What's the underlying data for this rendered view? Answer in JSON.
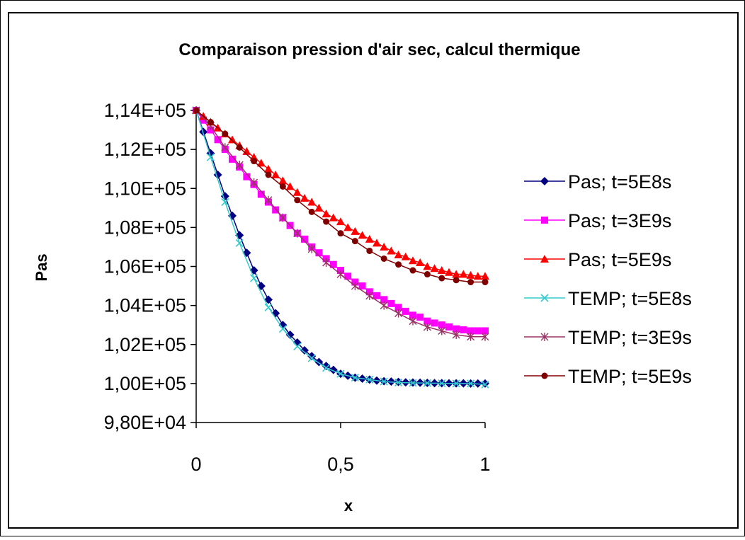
{
  "chart_data": {
    "type": "line",
    "title": "Comparaison pression d'air sec, calcul thermique",
    "xlabel": "x",
    "ylabel": "Pas",
    "xlim": [
      0,
      1
    ],
    "ylim": [
      98000,
      114000
    ],
    "x_ticks": [
      0,
      0.5,
      1
    ],
    "x_tick_labels": [
      "0",
      "0,5",
      "1"
    ],
    "y_ticks": [
      98000,
      100000,
      102000,
      104000,
      106000,
      108000,
      110000,
      112000,
      114000
    ],
    "y_tick_labels": [
      "9,80E+04",
      "1,00E+05",
      "1,02E+05",
      "1,04E+05",
      "1,06E+05",
      "1,08E+05",
      "1,10E+05",
      "1,12E+05",
      "1,14E+05"
    ],
    "grid": false,
    "legend_position": "right",
    "series": [
      {
        "name": "Pas; t=5E8s",
        "color": "#000080",
        "marker": "diamond",
        "x": [
          0,
          0.025,
          0.05,
          0.075,
          0.1,
          0.125,
          0.15,
          0.175,
          0.2,
          0.225,
          0.25,
          0.275,
          0.3,
          0.325,
          0.35,
          0.375,
          0.4,
          0.425,
          0.45,
          0.475,
          0.5,
          0.525,
          0.55,
          0.575,
          0.6,
          0.625,
          0.65,
          0.675,
          0.7,
          0.725,
          0.75,
          0.775,
          0.8,
          0.825,
          0.85,
          0.875,
          0.9,
          0.925,
          0.95,
          0.975,
          1
        ],
        "y": [
          114000,
          112900,
          111800,
          110700,
          109600,
          108600,
          107600,
          106700,
          105800,
          105000,
          104300,
          103600,
          103000,
          102500,
          102100,
          101700,
          101400,
          101100,
          100900,
          100700,
          100500,
          100400,
          100300,
          100250,
          100200,
          100150,
          100120,
          100100,
          100080,
          100060,
          100050,
          100040,
          100030,
          100020,
          100020,
          100010,
          100010,
          100010,
          100000,
          100000,
          100000
        ]
      },
      {
        "name": "Pas; t=3E9s",
        "color": "#FF00FF",
        "marker": "square",
        "x": [
          0,
          0.025,
          0.05,
          0.075,
          0.1,
          0.125,
          0.15,
          0.175,
          0.2,
          0.225,
          0.25,
          0.275,
          0.3,
          0.325,
          0.35,
          0.375,
          0.4,
          0.425,
          0.45,
          0.475,
          0.5,
          0.525,
          0.55,
          0.575,
          0.6,
          0.625,
          0.65,
          0.675,
          0.7,
          0.725,
          0.75,
          0.775,
          0.8,
          0.825,
          0.85,
          0.875,
          0.9,
          0.925,
          0.95,
          0.975,
          1
        ],
        "y": [
          114000,
          113500,
          113000,
          112500,
          112000,
          111500,
          111100,
          110600,
          110200,
          109700,
          109300,
          108900,
          108500,
          108100,
          107700,
          107400,
          107000,
          106700,
          106400,
          106100,
          105800,
          105500,
          105200,
          105000,
          104700,
          104500,
          104300,
          104100,
          103900,
          103700,
          103500,
          103400,
          103200,
          103100,
          103000,
          102900,
          102800,
          102750,
          102700,
          102700,
          102700
        ]
      },
      {
        "name": "Pas; t=5E9s",
        "color": "#FF0000",
        "marker": "triangle",
        "x": [
          0,
          0.025,
          0.05,
          0.075,
          0.1,
          0.125,
          0.15,
          0.175,
          0.2,
          0.225,
          0.25,
          0.275,
          0.3,
          0.325,
          0.35,
          0.375,
          0.4,
          0.425,
          0.45,
          0.475,
          0.5,
          0.525,
          0.55,
          0.575,
          0.6,
          0.625,
          0.65,
          0.675,
          0.7,
          0.725,
          0.75,
          0.775,
          0.8,
          0.825,
          0.85,
          0.875,
          0.9,
          0.925,
          0.95,
          0.975,
          1
        ],
        "y": [
          114000,
          113700,
          113400,
          113100,
          112800,
          112500,
          112200,
          111900,
          111600,
          111300,
          111000,
          110700,
          110400,
          110100,
          109800,
          109500,
          109300,
          109000,
          108700,
          108500,
          108300,
          108000,
          107800,
          107600,
          107400,
          107200,
          107000,
          106800,
          106600,
          106500,
          106300,
          106200,
          106000,
          105900,
          105800,
          105700,
          105600,
          105600,
          105550,
          105500,
          105500
        ]
      },
      {
        "name": "TEMP; t=5E8s",
        "color": "#33CCCC",
        "marker": "x",
        "x": [
          0,
          0.05,
          0.1,
          0.15,
          0.2,
          0.25,
          0.3,
          0.35,
          0.4,
          0.45,
          0.5,
          0.55,
          0.6,
          0.65,
          0.7,
          0.75,
          0.8,
          0.85,
          0.9,
          0.95,
          1
        ],
        "y": [
          114000,
          111600,
          109300,
          107200,
          105400,
          103900,
          102800,
          101900,
          101300,
          100800,
          100500,
          100300,
          100200,
          100100,
          100050,
          100030,
          100020,
          100010,
          100000,
          100000,
          99950
        ]
      },
      {
        "name": "TEMP; t=3E9s",
        "color": "#993366",
        "marker": "asterisk",
        "x": [
          0,
          0.05,
          0.1,
          0.15,
          0.2,
          0.25,
          0.3,
          0.35,
          0.4,
          0.45,
          0.5,
          0.55,
          0.6,
          0.65,
          0.7,
          0.75,
          0.8,
          0.85,
          0.9,
          0.95,
          1
        ],
        "y": [
          114000,
          113200,
          112100,
          111200,
          110300,
          109400,
          108500,
          107700,
          106900,
          106200,
          105600,
          105000,
          104500,
          104000,
          103600,
          103200,
          102900,
          102700,
          102500,
          102400,
          102400
        ]
      },
      {
        "name": "TEMP; t=5E9s",
        "color": "#800000",
        "marker": "circle",
        "x": [
          0,
          0.05,
          0.1,
          0.15,
          0.2,
          0.25,
          0.3,
          0.35,
          0.4,
          0.45,
          0.5,
          0.55,
          0.6,
          0.65,
          0.7,
          0.75,
          0.8,
          0.85,
          0.9,
          0.95,
          1
        ],
        "y": [
          114000,
          113400,
          112800,
          112100,
          111400,
          110700,
          110100,
          109400,
          108800,
          108300,
          107700,
          107300,
          106800,
          106400,
          106100,
          105800,
          105600,
          105400,
          105300,
          105200,
          105200
        ]
      }
    ]
  }
}
